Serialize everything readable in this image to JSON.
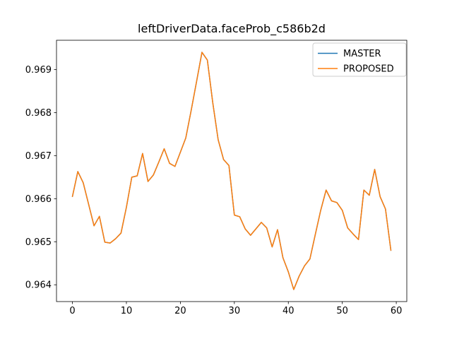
{
  "window": {
    "background": "#ffffff"
  },
  "chart_data": {
    "type": "line",
    "title": "leftDriverData.faceProb_c586b2d",
    "xlabel": "",
    "ylabel": "",
    "grid": false,
    "x": [
      0,
      1,
      2,
      3,
      4,
      5,
      6,
      7,
      8,
      9,
      10,
      11,
      12,
      13,
      14,
      15,
      16,
      17,
      18,
      19,
      20,
      21,
      22,
      23,
      24,
      25,
      26,
      27,
      28,
      29,
      30,
      31,
      32,
      33,
      34,
      35,
      36,
      37,
      38,
      39,
      40,
      41,
      42,
      43,
      44,
      45,
      46,
      47,
      48,
      49,
      50,
      51,
      52,
      53,
      54,
      55,
      56,
      57,
      58,
      59
    ],
    "series": [
      {
        "name": "MASTER",
        "color": "#1f77b4",
        "values": [
          0.96605,
          0.96663,
          0.96637,
          0.96587,
          0.96537,
          0.96559,
          0.96499,
          0.96497,
          0.96507,
          0.9652,
          0.9658,
          0.9665,
          0.96653,
          0.96705,
          0.9664,
          0.96655,
          0.96685,
          0.96716,
          0.96682,
          0.96675,
          0.96708,
          0.96741,
          0.96805,
          0.96872,
          0.9694,
          0.96922,
          0.96823,
          0.96737,
          0.96691,
          0.96677,
          0.96562,
          0.96558,
          0.9653,
          0.96515,
          0.9653,
          0.96545,
          0.96532,
          0.96488,
          0.96528,
          0.96463,
          0.9643,
          0.96389,
          0.9642,
          0.96444,
          0.9646,
          0.96517,
          0.96573,
          0.9662,
          0.96595,
          0.96591,
          0.96573,
          0.96532,
          0.96518,
          0.96505,
          0.9662,
          0.96608,
          0.96668,
          0.96605,
          0.96576,
          0.9648
        ]
      },
      {
        "name": "PROPOSED",
        "color": "#ff7f0e",
        "values": [
          0.96605,
          0.96663,
          0.96637,
          0.96587,
          0.96537,
          0.96559,
          0.96499,
          0.96497,
          0.96507,
          0.9652,
          0.9658,
          0.9665,
          0.96653,
          0.96705,
          0.9664,
          0.96655,
          0.96685,
          0.96716,
          0.96682,
          0.96675,
          0.96708,
          0.96741,
          0.96805,
          0.96872,
          0.9694,
          0.96922,
          0.96823,
          0.96737,
          0.96691,
          0.96677,
          0.96562,
          0.96558,
          0.9653,
          0.96515,
          0.9653,
          0.96545,
          0.96532,
          0.96488,
          0.96528,
          0.96463,
          0.9643,
          0.96389,
          0.9642,
          0.96444,
          0.9646,
          0.96517,
          0.96573,
          0.9662,
          0.96595,
          0.96591,
          0.96573,
          0.96532,
          0.96518,
          0.96505,
          0.9662,
          0.96608,
          0.96668,
          0.96605,
          0.96576,
          0.9648
        ]
      }
    ],
    "legend": {
      "position": "upper right",
      "entries": [
        "MASTER",
        "PROPOSED"
      ]
    },
    "axes": {
      "xlim": [
        -2.95,
        61.95
      ],
      "ylim": [
        0.96361,
        0.96968
      ],
      "xticks": [
        0,
        10,
        20,
        30,
        40,
        50,
        60
      ],
      "xticklabels": [
        "0",
        "10",
        "20",
        "30",
        "40",
        "50",
        "60"
      ],
      "yticks": [
        0.964,
        0.965,
        0.966,
        0.967,
        0.968,
        0.969
      ],
      "yticklabels": [
        "0.964",
        "0.965",
        "0.966",
        "0.967",
        "0.968",
        "0.969"
      ],
      "spine_color": "#000000",
      "tick_color": "#000000"
    }
  }
}
